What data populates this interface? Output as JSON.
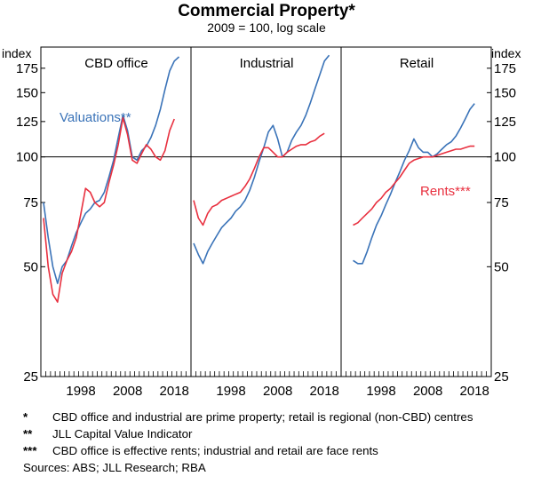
{
  "chart_data": {
    "type": "line",
    "title": "Commercial Property*",
    "subtitle": "2009 = 100, log scale",
    "ylabel_left": "index",
    "ylabel_right": "index",
    "scale": "log",
    "ylim": [
      25,
      200
    ],
    "yticks": [
      25,
      50,
      75,
      100,
      125,
      150,
      175
    ],
    "xlim": [
      1990,
      2021
    ],
    "xticks": [
      "1998",
      "2008",
      "2018"
    ],
    "reference_line": 100,
    "series_colors": {
      "valuations": "#3a73b8",
      "rents": "#e8303f"
    },
    "series_labels": {
      "valuations": "Valuations**",
      "rents": "Rents***"
    },
    "panels": [
      {
        "title": "CBD office",
        "valuations": [
          [
            1990,
            75
          ],
          [
            1991,
            60
          ],
          [
            1992,
            50
          ],
          [
            1993,
            45
          ],
          [
            1994,
            50
          ],
          [
            1995,
            52
          ],
          [
            1996,
            57
          ],
          [
            1997,
            62
          ],
          [
            1998,
            66
          ],
          [
            1999,
            70
          ],
          [
            2000,
            72
          ],
          [
            2001,
            75
          ],
          [
            2002,
            76
          ],
          [
            2003,
            80
          ],
          [
            2004,
            88
          ],
          [
            2005,
            98
          ],
          [
            2006,
            113
          ],
          [
            2007,
            130
          ],
          [
            2008,
            118
          ],
          [
            2009,
            100
          ],
          [
            2010,
            98
          ],
          [
            2011,
            104
          ],
          [
            2012,
            107
          ],
          [
            2013,
            113
          ],
          [
            2014,
            122
          ],
          [
            2015,
            135
          ],
          [
            2016,
            153
          ],
          [
            2017,
            172
          ],
          [
            2018,
            183
          ],
          [
            2019,
            188
          ]
        ],
        "rents": [
          [
            1990,
            68
          ],
          [
            1991,
            50
          ],
          [
            1992,
            42
          ],
          [
            1993,
            40
          ],
          [
            1994,
            48
          ],
          [
            1995,
            52
          ],
          [
            1996,
            55
          ],
          [
            1997,
            60
          ],
          [
            1998,
            70
          ],
          [
            1999,
            82
          ],
          [
            2000,
            80
          ],
          [
            2001,
            75
          ],
          [
            2002,
            73
          ],
          [
            2003,
            75
          ],
          [
            2004,
            85
          ],
          [
            2005,
            95
          ],
          [
            2006,
            108
          ],
          [
            2007,
            128
          ],
          [
            2008,
            115
          ],
          [
            2009,
            98
          ],
          [
            2010,
            96
          ],
          [
            2011,
            102
          ],
          [
            2012,
            108
          ],
          [
            2013,
            105
          ],
          [
            2014,
            100
          ],
          [
            2015,
            98
          ],
          [
            2016,
            104
          ],
          [
            2017,
            118
          ],
          [
            2018,
            127
          ]
        ]
      },
      {
        "title": "Industrial",
        "valuations": [
          [
            1990,
            58
          ],
          [
            1991,
            54
          ],
          [
            1992,
            51
          ],
          [
            1993,
            55
          ],
          [
            1994,
            58
          ],
          [
            1995,
            61
          ],
          [
            1996,
            64
          ],
          [
            1997,
            66
          ],
          [
            1998,
            68
          ],
          [
            1999,
            71
          ],
          [
            2000,
            73
          ],
          [
            2001,
            76
          ],
          [
            2002,
            81
          ],
          [
            2003,
            88
          ],
          [
            2004,
            97
          ],
          [
            2005,
            106
          ],
          [
            2006,
            117
          ],
          [
            2007,
            122
          ],
          [
            2008,
            112
          ],
          [
            2009,
            100
          ],
          [
            2010,
            103
          ],
          [
            2011,
            111
          ],
          [
            2012,
            117
          ],
          [
            2013,
            122
          ],
          [
            2014,
            130
          ],
          [
            2015,
            141
          ],
          [
            2016,
            154
          ],
          [
            2017,
            168
          ],
          [
            2018,
            183
          ],
          [
            2019,
            190
          ]
        ],
        "rents": [
          [
            1990,
            76
          ],
          [
            1991,
            68
          ],
          [
            1992,
            65
          ],
          [
            1993,
            70
          ],
          [
            1994,
            73
          ],
          [
            1995,
            74
          ],
          [
            1996,
            76
          ],
          [
            1997,
            77
          ],
          [
            1998,
            78
          ],
          [
            1999,
            79
          ],
          [
            2000,
            80
          ],
          [
            2001,
            83
          ],
          [
            2002,
            87
          ],
          [
            2003,
            93
          ],
          [
            2004,
            100
          ],
          [
            2005,
            106
          ],
          [
            2006,
            106
          ],
          [
            2007,
            103
          ],
          [
            2008,
            100
          ],
          [
            2009,
            100
          ],
          [
            2010,
            103
          ],
          [
            2011,
            105
          ],
          [
            2012,
            107
          ],
          [
            2013,
            108
          ],
          [
            2014,
            108
          ],
          [
            2015,
            110
          ],
          [
            2016,
            111
          ],
          [
            2017,
            114
          ],
          [
            2018,
            116
          ]
        ]
      },
      {
        "title": "Retail",
        "valuations": [
          [
            1992,
            52
          ],
          [
            1993,
            51
          ],
          [
            1994,
            51
          ],
          [
            1995,
            55
          ],
          [
            1996,
            60
          ],
          [
            1997,
            65
          ],
          [
            1998,
            69
          ],
          [
            1999,
            74
          ],
          [
            2000,
            79
          ],
          [
            2001,
            85
          ],
          [
            2002,
            91
          ],
          [
            2003,
            98
          ],
          [
            2004,
            104
          ],
          [
            2005,
            112
          ],
          [
            2006,
            106
          ],
          [
            2007,
            103
          ],
          [
            2008,
            103
          ],
          [
            2009,
            100
          ],
          [
            2010,
            102
          ],
          [
            2011,
            105
          ],
          [
            2012,
            108
          ],
          [
            2013,
            110
          ],
          [
            2014,
            114
          ],
          [
            2015,
            120
          ],
          [
            2016,
            127
          ],
          [
            2017,
            135
          ],
          [
            2018,
            140
          ]
        ],
        "rents": [
          [
            1992,
            65
          ],
          [
            1993,
            66
          ],
          [
            1994,
            68
          ],
          [
            1995,
            70
          ],
          [
            1996,
            72
          ],
          [
            1997,
            75
          ],
          [
            1998,
            77
          ],
          [
            1999,
            80
          ],
          [
            2000,
            82
          ],
          [
            2001,
            85
          ],
          [
            2002,
            88
          ],
          [
            2003,
            92
          ],
          [
            2004,
            96
          ],
          [
            2005,
            98
          ],
          [
            2006,
            99
          ],
          [
            2007,
            100
          ],
          [
            2008,
            100
          ],
          [
            2009,
            100
          ],
          [
            2010,
            101
          ],
          [
            2011,
            102
          ],
          [
            2012,
            103
          ],
          [
            2013,
            104
          ],
          [
            2014,
            105
          ],
          [
            2015,
            105
          ],
          [
            2016,
            106
          ],
          [
            2017,
            107
          ],
          [
            2018,
            107
          ]
        ]
      }
    ]
  },
  "notes": [
    {
      "mark": "*",
      "text": "CBD office and industrial are prime property; retail is regional (non-CBD) centres"
    },
    {
      "mark": "**",
      "text": "JLL Capital Value Indicator"
    },
    {
      "mark": "***",
      "text": "CBD office is effective rents; industrial and retail are face rents"
    }
  ],
  "sources": "Sources: ABS; JLL Research; RBA"
}
